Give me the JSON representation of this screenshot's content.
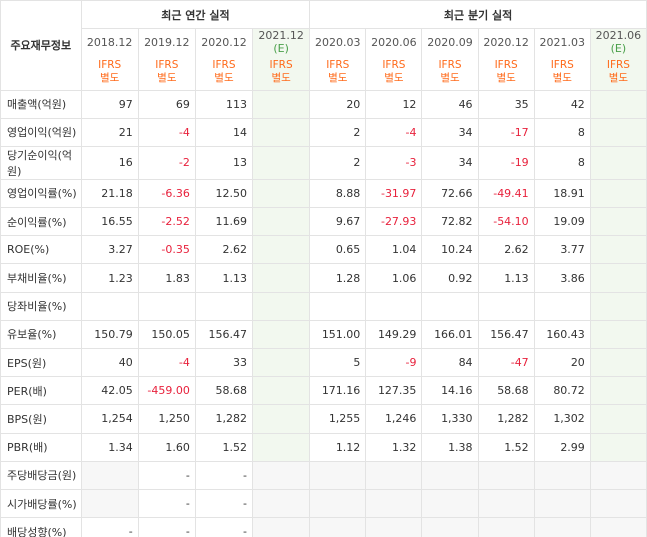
{
  "header": {
    "row_title": "주요재무정보",
    "annual_title": "최근 연간 실적",
    "quarter_title": "최근 분기 실적",
    "annual_periods": [
      "2018.12",
      "2019.12",
      "2020.12",
      "2021.12"
    ],
    "annual_est_suffix": "(E)",
    "quarter_periods": [
      "2020.03",
      "2020.06",
      "2020.09",
      "2020.12",
      "2021.03",
      "2021.06"
    ],
    "quarter_est_suffix": "(E)",
    "ifrs_line1": "IFRS",
    "ifrs_line2": "별도"
  },
  "rows": [
    {
      "label": "매출액(억원)",
      "annual": [
        "97",
        "69",
        "113",
        ""
      ],
      "quarter": [
        "20",
        "12",
        "46",
        "35",
        "42",
        ""
      ]
    },
    {
      "label": "영업이익(억원)",
      "annual": [
        "21",
        "-4",
        "14",
        ""
      ],
      "quarter": [
        "2",
        "-4",
        "34",
        "-17",
        "8",
        ""
      ]
    },
    {
      "label": "당기순이익(억원)",
      "annual": [
        "16",
        "-2",
        "13",
        ""
      ],
      "quarter": [
        "2",
        "-3",
        "34",
        "-19",
        "8",
        ""
      ]
    },
    {
      "label": "영업이익률(%)",
      "annual": [
        "21.18",
        "-6.36",
        "12.50",
        ""
      ],
      "quarter": [
        "8.88",
        "-31.97",
        "72.66",
        "-49.41",
        "18.91",
        ""
      ]
    },
    {
      "label": "순이익률(%)",
      "annual": [
        "16.55",
        "-2.52",
        "11.69",
        ""
      ],
      "quarter": [
        "9.67",
        "-27.93",
        "72.82",
        "-54.10",
        "19.09",
        ""
      ]
    },
    {
      "label": "ROE(%)",
      "annual": [
        "3.27",
        "-0.35",
        "2.62",
        ""
      ],
      "quarter": [
        "0.65",
        "1.04",
        "10.24",
        "2.62",
        "3.77",
        ""
      ]
    },
    {
      "label": "부채비율(%)",
      "annual": [
        "1.23",
        "1.83",
        "1.13",
        ""
      ],
      "quarter": [
        "1.28",
        "1.06",
        "0.92",
        "1.13",
        "3.86",
        ""
      ]
    },
    {
      "label": "당좌비율(%)",
      "annual": [
        "",
        "",
        "",
        ""
      ],
      "quarter": [
        "",
        "",
        "",
        "",
        "",
        ""
      ]
    },
    {
      "label": "유보율(%)",
      "annual": [
        "150.79",
        "150.05",
        "156.47",
        ""
      ],
      "quarter": [
        "151.00",
        "149.29",
        "166.01",
        "156.47",
        "160.43",
        ""
      ]
    },
    {
      "label": "EPS(원)",
      "annual": [
        "40",
        "-4",
        "33",
        ""
      ],
      "quarter": [
        "5",
        "-9",
        "84",
        "-47",
        "20",
        ""
      ]
    },
    {
      "label": "PER(배)",
      "annual": [
        "42.05",
        "-459.00",
        "58.68",
        ""
      ],
      "quarter": [
        "171.16",
        "127.35",
        "14.16",
        "58.68",
        "80.72",
        ""
      ]
    },
    {
      "label": "BPS(원)",
      "annual": [
        "1,254",
        "1,250",
        "1,282",
        ""
      ],
      "quarter": [
        "1,255",
        "1,246",
        "1,330",
        "1,282",
        "1,302",
        ""
      ]
    },
    {
      "label": "PBR(배)",
      "annual": [
        "1.34",
        "1.60",
        "1.52",
        ""
      ],
      "quarter": [
        "1.12",
        "1.32",
        "1.38",
        "1.52",
        "2.99",
        ""
      ]
    },
    {
      "label": "주당배당금(원)",
      "annual": [
        "",
        "-",
        "-",
        ""
      ],
      "quarter": [
        "",
        "",
        "",
        "",
        "",
        ""
      ]
    },
    {
      "label": "시가배당률(%)",
      "annual": [
        "",
        "-",
        "-",
        ""
      ],
      "quarter": [
        "",
        "",
        "",
        "",
        "",
        ""
      ]
    },
    {
      "label": "배당성향(%)",
      "annual": [
        "-",
        "-",
        "-",
        ""
      ],
      "quarter": [
        "",
        "",
        "",
        "",
        "",
        ""
      ]
    }
  ],
  "colors": {
    "negative": "#e8213c",
    "ifrs": "#ff6a1a",
    "estimate_bg": "#f2f8ef",
    "estimate_text": "#4a8f4a"
  }
}
